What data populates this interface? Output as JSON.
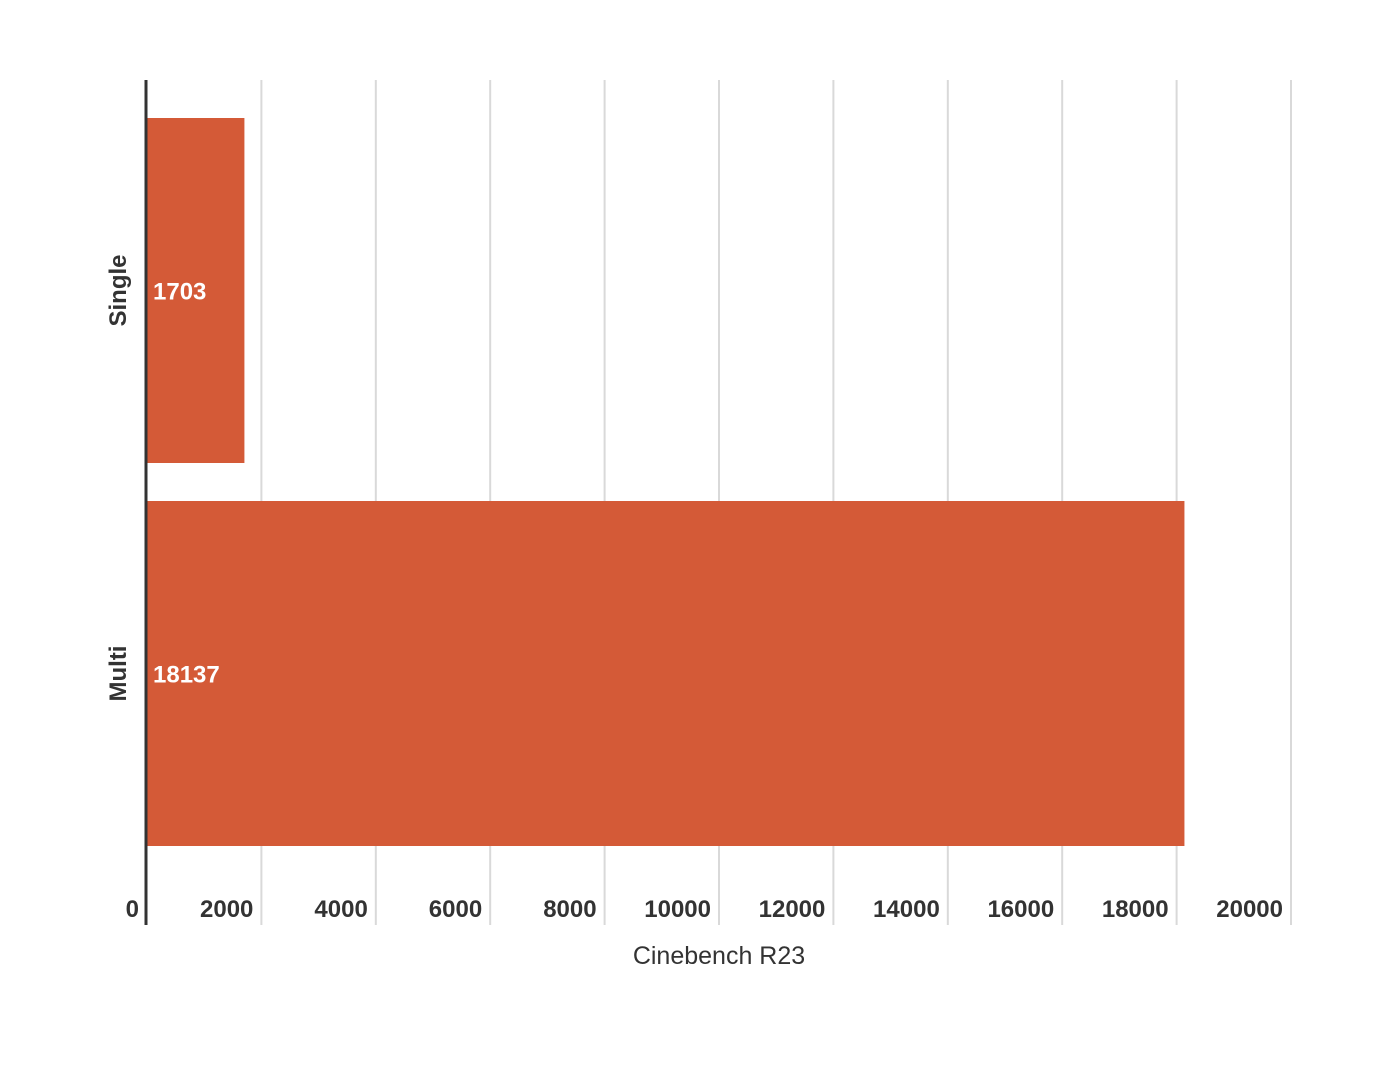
{
  "chart_data": {
    "type": "bar",
    "orientation": "horizontal",
    "categories": [
      "Single",
      "Multi"
    ],
    "values": [
      1703,
      18137
    ],
    "data_labels": [
      "1703",
      "18137"
    ],
    "title": "",
    "xlabel": "Cinebench R23",
    "ylabel": "",
    "xlim": [
      0,
      20000
    ],
    "x_ticks": [
      0,
      2000,
      4000,
      6000,
      8000,
      10000,
      12000,
      14000,
      16000,
      18000,
      20000
    ],
    "x_tick_labels": [
      "0",
      "2000",
      "4000",
      "6000",
      "8000",
      "10000",
      "12000",
      "14000",
      "16000",
      "18000",
      "20000"
    ],
    "grid": true,
    "legend": "none",
    "colors": {
      "bar": "#d45a37",
      "grid": "#d9d9d9",
      "axis": "#333333"
    }
  }
}
